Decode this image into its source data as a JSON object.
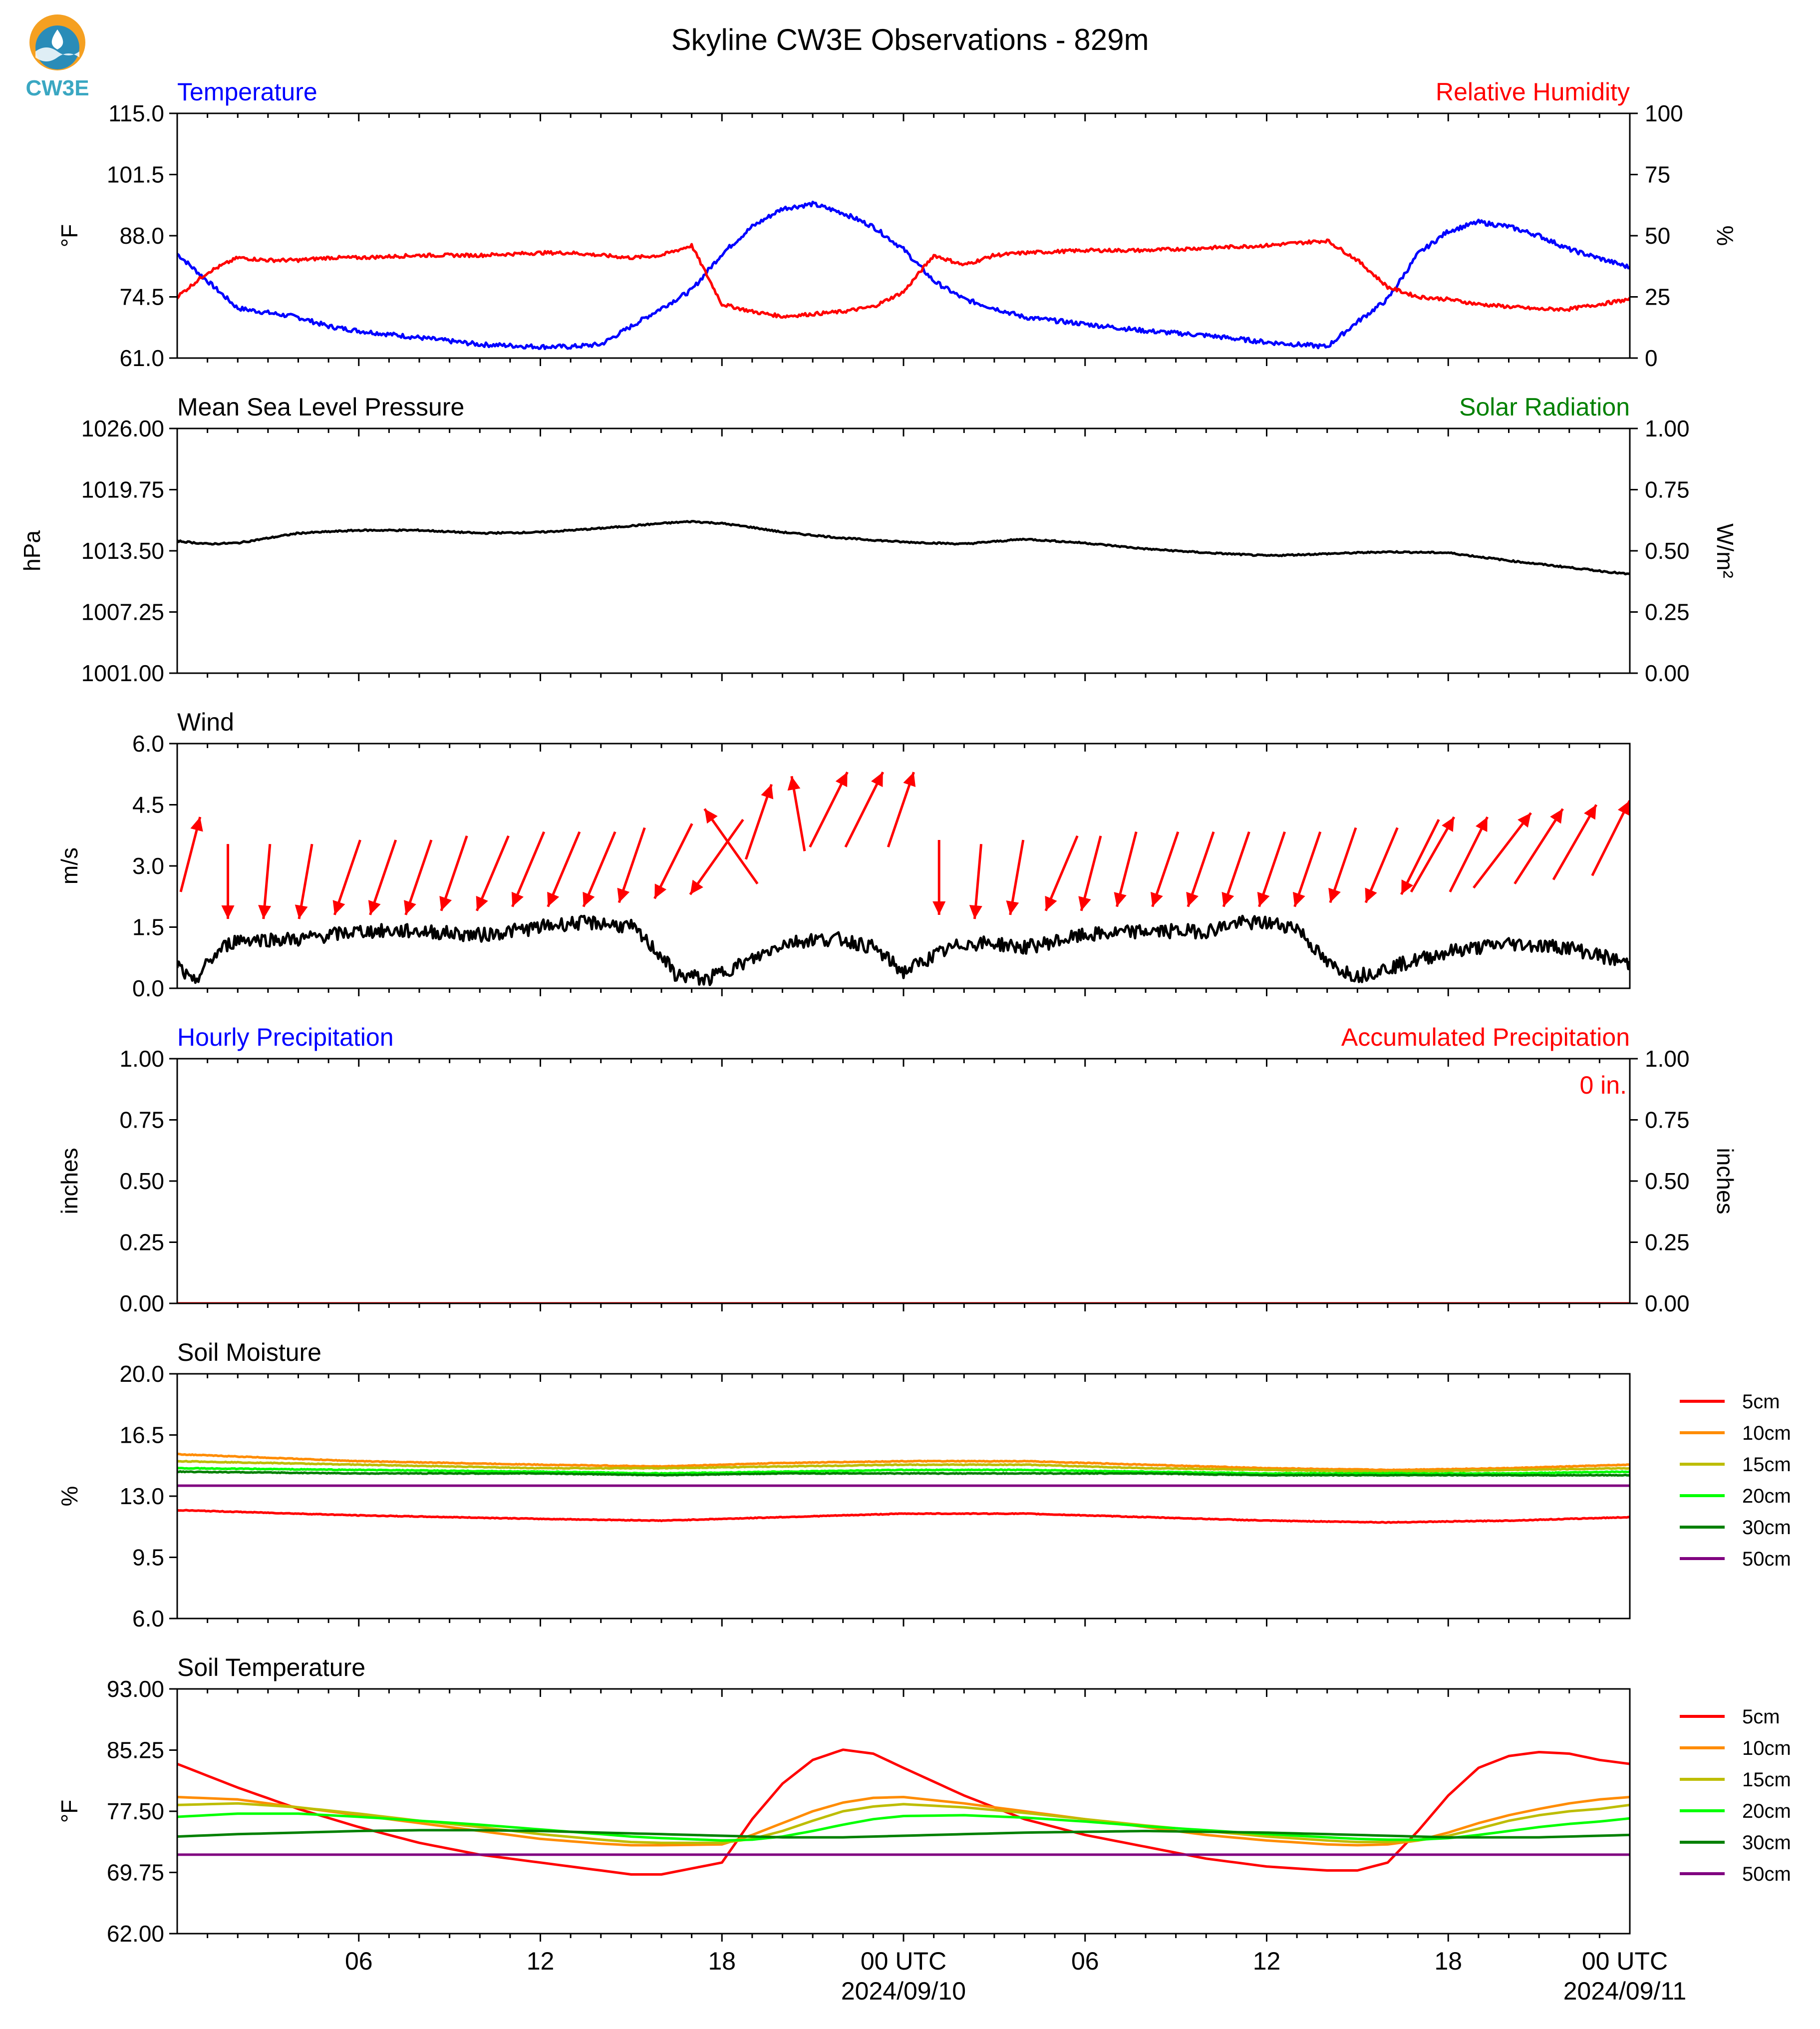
{
  "header": {
    "title": "Skyline CW3E Observations - 829m",
    "logo_text": "CW3E",
    "colors": {
      "logo_orange": "#f5a021",
      "logo_blue": "#2a8cb8",
      "logo_teal": "#3aa7c2"
    }
  },
  "x_axis": {
    "tick_labels": [
      "06",
      "12",
      "18",
      "00 UTC",
      "06",
      "12",
      "18",
      "00 UTC"
    ],
    "date_labels": [
      "2024/09/10",
      "2024/09/11"
    ],
    "range_hours": [
      0,
      48
    ]
  },
  "chart_data": [
    {
      "type": "line",
      "title_left": "Temperature",
      "title_right": "Relative Humidity",
      "ylabel_left": "°F",
      "ylabel_right": "%",
      "ylim_left": [
        61.0,
        115.0
      ],
      "yticks_left": [
        "61.0",
        "74.5",
        "88.0",
        "101.5",
        "115.0"
      ],
      "ylim_right": [
        0,
        100
      ],
      "yticks_right": [
        "0",
        "25",
        "50",
        "75",
        "100"
      ],
      "x_hours": [
        0,
        1,
        2,
        3,
        4,
        5,
        6,
        8,
        10,
        12,
        13,
        14,
        15,
        16,
        17,
        18,
        19,
        20,
        21,
        22,
        23,
        24,
        25,
        26,
        27,
        28,
        30,
        32,
        34,
        36,
        38,
        39,
        40,
        41,
        42,
        43,
        44,
        45,
        46,
        47,
        48
      ],
      "series": [
        {
          "name": "Temperature",
          "axis": "left",
          "color": "#0000ff",
          "values": [
            84,
            78,
            72,
            71,
            70,
            68,
            67,
            65.5,
            64,
            63.5,
            63.5,
            64,
            68,
            72,
            76,
            84,
            90,
            94,
            95,
            93,
            90,
            85,
            78,
            74,
            72,
            70,
            68.5,
            67,
            66,
            64.5,
            63.5,
            69,
            74,
            84,
            89,
            91,
            90,
            88,
            85,
            83,
            81
          ]
        },
        {
          "name": "Relative Humidity",
          "axis": "right",
          "color": "#ff0000",
          "values": [
            25,
            35,
            41,
            40,
            40,
            41,
            41,
            42,
            42,
            43,
            43,
            42,
            41,
            42,
            46,
            22,
            19,
            17,
            18,
            19,
            21,
            27,
            42,
            38,
            42,
            43,
            44,
            44,
            45,
            46,
            48,
            40,
            29,
            25,
            24,
            22,
            21,
            20,
            20,
            22,
            24
          ]
        }
      ]
    },
    {
      "type": "line",
      "title_left": "Mean Sea Level Pressure",
      "title_right": "Solar Radiation",
      "ylabel_left": "hPa",
      "ylabel_right": "W/m²",
      "ylim_left": [
        1001.0,
        1026.0
      ],
      "yticks_left": [
        "1001.00",
        "1007.25",
        "1013.50",
        "1019.75",
        "1026.00"
      ],
      "ylim_right": [
        0,
        1
      ],
      "yticks_right": [
        "0.00",
        "0.25",
        "0.50",
        "0.75",
        "1.00"
      ],
      "x_hours": [
        0,
        1,
        2,
        4,
        6,
        8,
        10,
        12,
        14,
        16,
        17,
        18,
        19,
        20,
        22,
        24,
        26,
        28,
        30,
        32,
        34,
        36,
        38,
        40,
        42,
        44,
        46,
        48
      ],
      "series": [
        {
          "name": "Mean Sea Level Pressure",
          "axis": "left",
          "color": "#000000",
          "values": [
            1014.5,
            1014.2,
            1014.3,
            1015.3,
            1015.6,
            1015.6,
            1015.3,
            1015.4,
            1015.8,
            1016.3,
            1016.5,
            1016.3,
            1015.9,
            1015.4,
            1014.8,
            1014.4,
            1014.2,
            1014.7,
            1014.3,
            1013.7,
            1013.3,
            1013.0,
            1013.2,
            1013.4,
            1013.3,
            1012.5,
            1011.8,
            1011.1
          ]
        }
      ]
    },
    {
      "type": "line",
      "title_left": "Wind",
      "ylabel_left": "m/s",
      "ylim_left": [
        0.0,
        6.0
      ],
      "yticks_left": [
        "0.0",
        "1.5",
        "3.0",
        "4.5",
        "6.0"
      ],
      "x_hours": [
        0,
        0.5,
        1,
        1.5,
        2,
        4,
        6,
        8,
        10,
        12,
        13,
        14,
        15,
        16,
        16.5,
        17,
        17.5,
        18,
        19,
        20,
        21,
        22,
        23,
        24,
        25,
        26,
        27,
        28,
        30,
        32,
        34,
        35,
        36,
        37,
        38,
        39,
        40,
        42,
        44,
        46,
        48
      ],
      "series": [
        {
          "name": "Wind Speed",
          "axis": "left",
          "color": "#000000",
          "values": [
            0.6,
            0.1,
            0.6,
            1.0,
            1.2,
            1.2,
            1.4,
            1.4,
            1.3,
            1.5,
            1.6,
            1.6,
            1.5,
            0.8,
            0.3,
            0.3,
            0.2,
            0.4,
            0.7,
            1.1,
            1.2,
            1.2,
            1.0,
            0.4,
            0.8,
            1.1,
            1.1,
            1.0,
            1.3,
            1.4,
            1.4,
            1.6,
            1.6,
            1.5,
            0.6,
            0.3,
            0.5,
            0.9,
            1.1,
            1.0,
            0.6
          ]
        }
      ],
      "arrows": {
        "color": "#ff0000",
        "speed_ms": [
          4.2,
          1.7,
          1.7,
          1.7,
          1.8,
          1.8,
          1.8,
          1.9,
          1.9,
          2.0,
          2.0,
          2.0,
          2.1,
          2.2,
          2.3,
          4.4,
          5.0,
          5.2,
          5.3,
          5.3,
          5.3,
          1.8,
          1.7,
          1.8,
          1.9,
          1.9,
          2.0,
          2.0,
          2.0,
          2.0,
          2.0,
          2.0,
          2.1,
          2.1,
          2.3,
          4.2,
          4.2,
          4.3,
          4.4,
          4.5,
          4.6
        ],
        "dir_deg": [
          15,
          0,
          5,
          10,
          20,
          20,
          20,
          20,
          25,
          25,
          25,
          25,
          20,
          30,
          45,
          315,
          20,
          350,
          30,
          30,
          20,
          0,
          5,
          10,
          25,
          15,
          15,
          20,
          20,
          20,
          20,
          20,
          20,
          25,
          30,
          35,
          30,
          50,
          40,
          35,
          30
        ]
      }
    },
    {
      "type": "line",
      "title_left": "Hourly Precipitation",
      "title_right": "Accumulated Precipitation",
      "annotation": "0 in.",
      "ylabel_left": "inches",
      "ylabel_right": "inches",
      "ylim_left": [
        0,
        1
      ],
      "yticks_left": [
        "0.00",
        "0.25",
        "0.50",
        "0.75",
        "1.00"
      ],
      "ylim_right": [
        0,
        1
      ],
      "yticks_right": [
        "0.00",
        "0.25",
        "0.50",
        "0.75",
        "1.00"
      ],
      "x_hours": [
        0,
        48
      ],
      "series": [
        {
          "name": "Hourly Precipitation",
          "axis": "left",
          "color": "#0000ff",
          "values": [
            0,
            0
          ]
        },
        {
          "name": "Accumulated Precipitation",
          "axis": "right",
          "color": "#ff0000",
          "values": [
            0,
            0
          ]
        }
      ]
    },
    {
      "type": "line",
      "title_left": "Soil Moisture",
      "ylabel_left": "%",
      "ylim_left": [
        6.0,
        20.0
      ],
      "yticks_left": [
        "6.0",
        "9.5",
        "13.0",
        "16.5",
        "20.0"
      ],
      "legend": "right",
      "x_hours": [
        0,
        6,
        12,
        16,
        20,
        24,
        28,
        32,
        36,
        40,
        44,
        48
      ],
      "series": [
        {
          "name": "5cm",
          "color": "#ff0000",
          "values": [
            12.2,
            11.9,
            11.7,
            11.6,
            11.8,
            12.0,
            12.0,
            11.8,
            11.6,
            11.5,
            11.6,
            11.8
          ]
        },
        {
          "name": "10cm",
          "color": "#ff8c00",
          "values": [
            15.4,
            15.0,
            14.8,
            14.7,
            14.9,
            15.0,
            15.0,
            14.8,
            14.6,
            14.5,
            14.6,
            14.8
          ]
        },
        {
          "name": "15cm",
          "color": "#bdbd00",
          "values": [
            15.0,
            14.8,
            14.6,
            14.6,
            14.7,
            14.8,
            14.8,
            14.6,
            14.5,
            14.4,
            14.5,
            14.6
          ]
        },
        {
          "name": "20cm",
          "color": "#00ff00",
          "values": [
            14.6,
            14.5,
            14.4,
            14.3,
            14.4,
            14.5,
            14.5,
            14.4,
            14.3,
            14.3,
            14.3,
            14.4
          ]
        },
        {
          "name": "30cm",
          "color": "#008000",
          "values": [
            14.4,
            14.3,
            14.3,
            14.2,
            14.3,
            14.3,
            14.3,
            14.3,
            14.2,
            14.2,
            14.2,
            14.2
          ]
        },
        {
          "name": "50cm",
          "color": "#800080",
          "values": [
            13.6,
            13.6,
            13.6,
            13.6,
            13.6,
            13.6,
            13.6,
            13.6,
            13.6,
            13.6,
            13.6,
            13.6
          ]
        }
      ]
    },
    {
      "type": "line",
      "title_left": "Soil Temperature",
      "ylabel_left": "°F",
      "ylim_left": [
        62.0,
        93.0
      ],
      "yticks_left": [
        "62.00",
        "69.75",
        "77.50",
        "85.25",
        "93.00"
      ],
      "legend": "right",
      "x_hours": [
        0,
        2,
        4,
        6,
        8,
        10,
        12,
        14,
        15,
        16,
        18,
        19,
        20,
        21,
        22,
        23,
        24,
        26,
        28,
        30,
        32,
        34,
        36,
        38,
        39,
        40,
        41,
        42,
        43,
        44,
        45,
        46,
        47,
        48
      ],
      "series": [
        {
          "name": "5cm",
          "color": "#ff0000",
          "values": [
            83.5,
            80.5,
            77.8,
            75.5,
            73.5,
            72.0,
            71.0,
            70.0,
            69.5,
            69.5,
            71.0,
            76.5,
            81.0,
            84.0,
            85.3,
            84.8,
            83.0,
            79.5,
            76.5,
            74.5,
            73.0,
            71.5,
            70.5,
            70.0,
            70.0,
            71.0,
            75.0,
            79.5,
            83.0,
            84.5,
            85.0,
            84.8,
            84.0,
            83.5
          ]
        },
        {
          "name": "10cm",
          "color": "#ff8c00",
          "values": [
            79.3,
            79.0,
            78.0,
            77.0,
            76.0,
            75.0,
            74.0,
            73.4,
            73.2,
            73.2,
            73.3,
            74.5,
            76.0,
            77.5,
            78.6,
            79.2,
            79.3,
            78.5,
            77.5,
            76.5,
            75.5,
            74.5,
            73.8,
            73.3,
            73.2,
            73.3,
            73.8,
            74.8,
            76.0,
            77.0,
            77.8,
            78.5,
            79.0,
            79.3
          ]
        },
        {
          "name": "15cm",
          "color": "#bdbd00",
          "values": [
            78.3,
            78.5,
            78.0,
            77.2,
            76.3,
            75.5,
            74.6,
            73.9,
            73.6,
            73.5,
            73.5,
            74.0,
            75.0,
            76.3,
            77.5,
            78.1,
            78.4,
            78.0,
            77.3,
            76.5,
            75.7,
            75.0,
            74.3,
            73.8,
            73.6,
            73.6,
            73.8,
            74.4,
            75.3,
            76.3,
            77.0,
            77.5,
            77.8,
            78.3
          ]
        },
        {
          "name": "20cm",
          "color": "#00ff00",
          "values": [
            76.8,
            77.2,
            77.2,
            76.8,
            76.3,
            75.8,
            75.2,
            74.6,
            74.3,
            74.1,
            73.8,
            73.9,
            74.3,
            75.0,
            75.8,
            76.5,
            76.9,
            77.0,
            76.7,
            76.2,
            75.6,
            75.1,
            74.6,
            74.2,
            74.0,
            73.9,
            73.9,
            74.1,
            74.5,
            75.0,
            75.5,
            75.9,
            76.2,
            76.6
          ]
        },
        {
          "name": "30cm",
          "color": "#008000",
          "values": [
            74.3,
            74.6,
            74.8,
            75.0,
            75.1,
            75.1,
            75.0,
            74.8,
            74.7,
            74.6,
            74.4,
            74.3,
            74.2,
            74.2,
            74.2,
            74.3,
            74.4,
            74.6,
            74.8,
            74.9,
            75.0,
            74.9,
            74.8,
            74.6,
            74.5,
            74.4,
            74.3,
            74.2,
            74.2,
            74.2,
            74.2,
            74.3,
            74.4,
            74.5
          ]
        },
        {
          "name": "50cm",
          "color": "#800080",
          "values": [
            72.0,
            72.0,
            72.0,
            72.0,
            72.0,
            72.0,
            72.0,
            72.0,
            72.0,
            72.0,
            72.0,
            72.0,
            72.0,
            72.0,
            72.0,
            72.0,
            72.0,
            72.0,
            72.0,
            72.0,
            72.0,
            72.0,
            72.0,
            72.0,
            72.0,
            72.0,
            72.0,
            72.0,
            72.0,
            72.0,
            72.0,
            72.0,
            72.0,
            72.0
          ]
        }
      ]
    }
  ]
}
